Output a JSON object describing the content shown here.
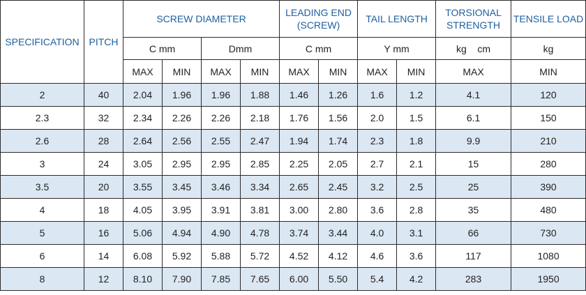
{
  "headers": {
    "specification": "SPECIFICATION",
    "pitch": "PITCH",
    "screw_diameter": "SCREW DIAMETER",
    "leading_end": "LEADING END (SCREW)",
    "tail_length": "TAIL LENGTH",
    "torsional_strength": "TORSIONAL STRENGTH",
    "tensile_load": "TENSILE LOAD"
  },
  "units": {
    "screw_c": "C mm",
    "screw_d": "Dmm",
    "leading_c": "C mm",
    "tail_y": "Y mm",
    "torsional": "kg    cm",
    "tensile": "kg"
  },
  "subheaders": {
    "screw_c_max": "MAX",
    "screw_c_min": "MIN",
    "screw_d_max": "MAX",
    "screw_d_min": "MIN",
    "leading_max": "MAX",
    "leading_min": "MIN",
    "tail_max": "MAX",
    "tail_min": "MIN",
    "torsional_max": "MAX",
    "tensile_min": "MIN"
  },
  "rows": [
    {
      "spec": "2",
      "pitch": "40",
      "c_max": "2.04",
      "c_min": "1.96",
      "d_max": "1.96",
      "d_min": "1.88",
      "le_max": "1.46",
      "le_min": "1.26",
      "tail_max": "1.6",
      "tail_min": "1.2",
      "torsional": "4.1",
      "tensile": "120"
    },
    {
      "spec": "2.3",
      "pitch": "32",
      "c_max": "2.34",
      "c_min": "2.26",
      "d_max": "2.26",
      "d_min": "2.18",
      "le_max": "1.76",
      "le_min": "1.56",
      "tail_max": "2.0",
      "tail_min": "1.5",
      "torsional": "6.1",
      "tensile": "150"
    },
    {
      "spec": "2.6",
      "pitch": "28",
      "c_max": "2.64",
      "c_min": "2.56",
      "d_max": "2.55",
      "d_min": "2.47",
      "le_max": "1.94",
      "le_min": "1.74",
      "tail_max": "2.3",
      "tail_min": "1.8",
      "torsional": "9.9",
      "tensile": "210"
    },
    {
      "spec": "3",
      "pitch": "24",
      "c_max": "3.05",
      "c_min": "2.95",
      "d_max": "2.95",
      "d_min": "2.85",
      "le_max": "2.25",
      "le_min": "2.05",
      "tail_max": "2.7",
      "tail_min": "2.1",
      "torsional": "15",
      "tensile": "280"
    },
    {
      "spec": "3.5",
      "pitch": "20",
      "c_max": "3.55",
      "c_min": "3.45",
      "d_max": "3.46",
      "d_min": "3.34",
      "le_max": "2.65",
      "le_min": "2.45",
      "tail_max": "3.2",
      "tail_min": "2.5",
      "torsional": "25",
      "tensile": "390"
    },
    {
      "spec": "4",
      "pitch": "18",
      "c_max": "4.05",
      "c_min": "3.95",
      "d_max": "3.91",
      "d_min": "3.81",
      "le_max": "3.00",
      "le_min": "2.80",
      "tail_max": "3.6",
      "tail_min": "2.8",
      "torsional": "35",
      "tensile": "480"
    },
    {
      "spec": "5",
      "pitch": "16",
      "c_max": "5.06",
      "c_min": "4.94",
      "d_max": "4.90",
      "d_min": "4.78",
      "le_max": "3.74",
      "le_min": "3.44",
      "tail_max": "4.0",
      "tail_min": "3.1",
      "torsional": "66",
      "tensile": "730"
    },
    {
      "spec": "6",
      "pitch": "14",
      "c_max": "6.08",
      "c_min": "5.92",
      "d_max": "5.88",
      "d_min": "5.72",
      "le_max": "4.52",
      "le_min": "4.12",
      "tail_max": "4.6",
      "tail_min": "3.6",
      "torsional": "117",
      "tensile": "1080"
    },
    {
      "spec": "8",
      "pitch": "12",
      "c_max": "8.10",
      "c_min": "7.90",
      "d_max": "7.85",
      "d_min": "7.65",
      "le_max": "6.00",
      "le_min": "5.50",
      "tail_max": "5.4",
      "tail_min": "4.2",
      "torsional": "283",
      "tensile": "1950"
    }
  ],
  "colors": {
    "header_text": "#1f5fa0",
    "stripe": "#dbe7f2",
    "border": "#2b2b2b"
  }
}
